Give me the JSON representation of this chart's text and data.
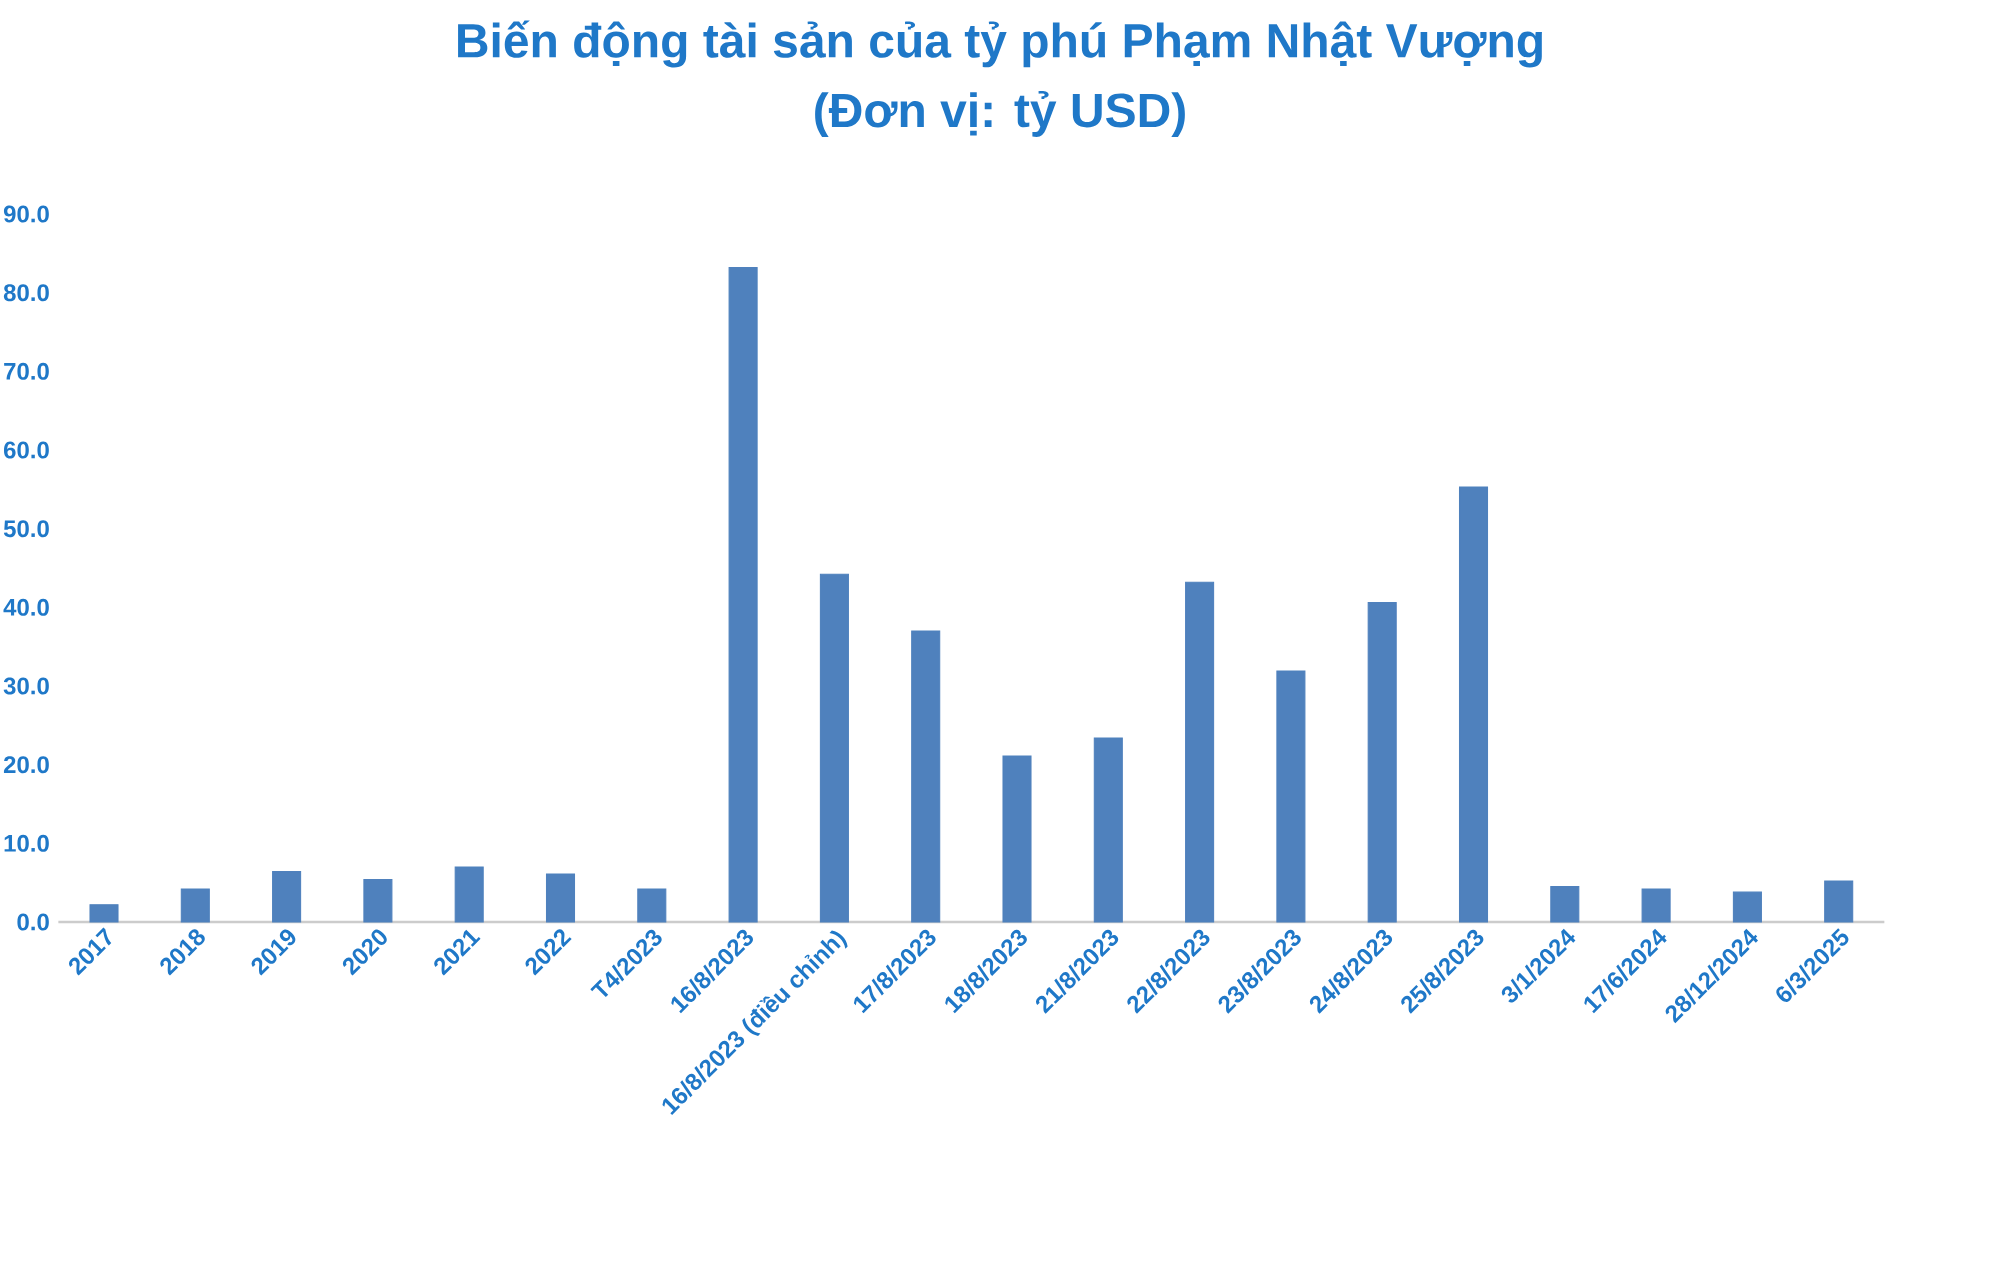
{
  "chart_data": {
    "type": "bar",
    "title": "Biến động tài sản của tỷ phú Phạm Nhật Vượng",
    "subtitle": "(Đơn vị: tỷ USD)",
    "categories": [
      "2017",
      "2018",
      "2019",
      "2020",
      "2021",
      "2022",
      "T4/2023",
      "16/8/2023",
      "16/8/2023 (điều chỉnh)",
      "17/8/2023",
      "18/8/2023",
      "21/8/2023",
      "22/8/2023",
      "23/8/2023",
      "24/8/2023",
      "25/8/2023",
      "3/1/2024",
      "17/6/2024",
      "28/12/2024",
      "6/3/2025"
    ],
    "values": [
      2.2,
      4.2,
      6.4,
      5.4,
      7.0,
      6.1,
      4.2,
      83.2,
      44.2,
      37.0,
      21.1,
      23.4,
      43.2,
      31.9,
      40.6,
      55.3,
      4.5,
      4.2,
      3.8,
      5.2
    ],
    "color": "#4f81bd",
    "ylim": [
      0,
      90
    ],
    "yticks": [
      {
        "value": 0,
        "label": "0.0"
      },
      {
        "value": 10,
        "label": "10.0"
      },
      {
        "value": 20,
        "label": "20.0"
      },
      {
        "value": 30,
        "label": "30.0"
      },
      {
        "value": 40,
        "label": "40.0"
      },
      {
        "value": 50,
        "label": "50.0"
      },
      {
        "value": 60,
        "label": "60.0"
      },
      {
        "value": 70,
        "label": "70.0"
      },
      {
        "value": 80,
        "label": "80.0"
      },
      {
        "value": 90,
        "label": "90.0"
      }
    ]
  }
}
